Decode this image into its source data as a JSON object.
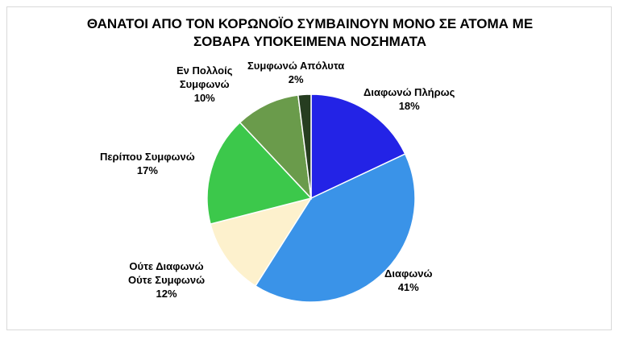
{
  "chart_data": {
    "type": "pie",
    "title_lines": [
      "ΘΑΝΑΤΟΙ ΑΠΟ ΤΟΝ ΚΟΡΩΝΟΪΟ ΣΥΜΒΑΙΝΟΥΝ ΜΟΝΟ ΣΕ ΑΤΟΜΑ ΜΕ",
      "ΣΟΒΑΡΑ ΥΠΟΚΕΙΜΕΝΑ ΝΟΣΗΜΑΤΑ"
    ],
    "slices": [
      {
        "label": "Διαφωνώ Πλήρως",
        "value": 18,
        "pct_label": "18%",
        "color": "#2323e6"
      },
      {
        "label": "Διαφωνώ",
        "value": 41,
        "pct_label": "41%",
        "color": "#3a93e8"
      },
      {
        "label": "Ούτε Διαφωνώ Ούτε Συμφωνώ",
        "value": 12,
        "pct_label": "12%",
        "color": "#fdf1cd"
      },
      {
        "label": "Περίπου Συμφωνώ",
        "value": 17,
        "pct_label": "17%",
        "color": "#3cc84b"
      },
      {
        "label": "Εν Πολλοίς Συμφωνώ",
        "value": 10,
        "pct_label": "10%",
        "color": "#6a9b4b"
      },
      {
        "label": "Συμφωνώ Απόλυτα",
        "value": 2,
        "pct_label": "2%",
        "color": "#263d20"
      }
    ],
    "start_angle_deg": 0,
    "direction": "clockwise",
    "legend": "none"
  },
  "labels": {
    "s0": {
      "line1": "Διαφωνώ Πλήρως",
      "pct": "18%"
    },
    "s1": {
      "line1": "Διαφωνώ",
      "pct": "41%"
    },
    "s2": {
      "line1": "Ούτε Διαφωνώ",
      "line2": "Ούτε Συμφωνώ",
      "pct": "12%"
    },
    "s3": {
      "line1": "Περίπου Συμφωνώ",
      "pct": "17%"
    },
    "s4": {
      "line1": "Εν Πολλοίς",
      "line2": "Συμφωνώ",
      "pct": "10%"
    },
    "s5": {
      "line1": "Συμφωνώ Απόλυτα",
      "pct": "2%"
    }
  }
}
